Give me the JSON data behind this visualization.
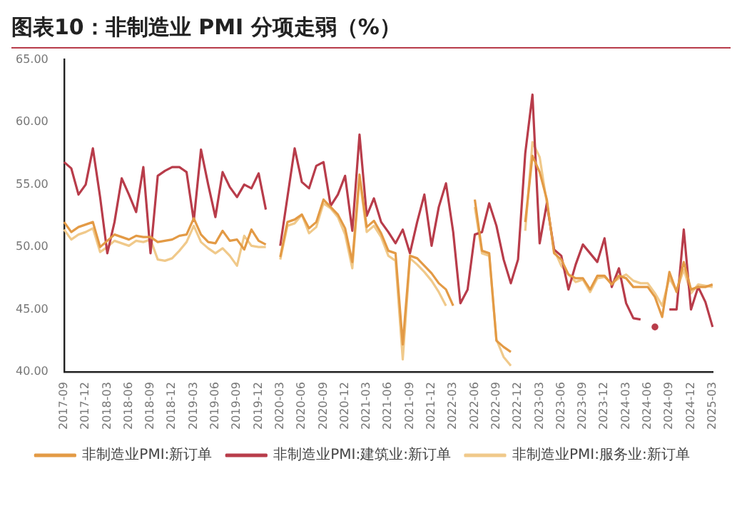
{
  "chart_data": {
    "type": "line",
    "title": "图表10：非制造业 PMI 分项走弱（%）",
    "categories": [
      "2017-09",
      null,
      null,
      "2017-12",
      null,
      null,
      "2018-03",
      null,
      null,
      "2018-06",
      null,
      null,
      "2018-09",
      null,
      null,
      "2018-12",
      null,
      null,
      "2019-03",
      null,
      null,
      "2019-06",
      null,
      null,
      "2019-09",
      null,
      null,
      "2019-12",
      null,
      null,
      "2020-03",
      null,
      null,
      "2020-06",
      null,
      null,
      "2020-09",
      null,
      null,
      "2020-12",
      null,
      null,
      "2021-03",
      null,
      null,
      "2021-06",
      null,
      null,
      "2021-09",
      null,
      null,
      "2021-12",
      null,
      null,
      "2022-03",
      null,
      null,
      "2022-06",
      null,
      null,
      "2022-09",
      null,
      null,
      "2022-12",
      null,
      null,
      "2023-03",
      null,
      null,
      "2023-06",
      null,
      null,
      "2023-09",
      null,
      null,
      "2023-12",
      null,
      null,
      "2024-03",
      null,
      null,
      "2024-06",
      null,
      null,
      "2024-09",
      null,
      null,
      "2024-12",
      null,
      null,
      "2025-03"
    ],
    "series": [
      {
        "name": "非制造业PMI:新订单",
        "color": "#e39a45",
        "values": [
          52,
          51.2,
          51.6,
          51.8,
          52,
          50,
          50.5,
          51,
          50.8,
          50.6,
          50.9,
          50.8,
          50.8,
          50.4,
          50.5,
          50.6,
          50.9,
          51,
          52.3,
          51,
          50.4,
          50.3,
          51.3,
          50.5,
          50.6,
          49.8,
          51.4,
          50.5,
          50.2,
          null,
          49.2,
          52,
          52.2,
          52.6,
          51.5,
          52,
          53.8,
          53.2,
          52.6,
          51.5,
          48.8,
          55.8,
          51.6,
          52.1,
          51.1,
          49.7,
          49.5,
          42.2,
          49.3,
          49.1,
          48.5,
          47.9,
          47.1,
          46.6,
          45.3,
          null,
          null,
          53.8,
          49.7,
          49.5,
          42.5,
          42,
          41.6,
          null,
          52,
          57.3,
          56,
          53.8,
          49.5,
          49,
          47.8,
          47.5,
          47.5,
          46.6,
          47.7,
          47.7,
          47,
          47.7,
          47.5,
          46.8,
          46.8,
          46.8,
          46,
          44.4,
          48,
          46.4,
          48.8,
          46.6,
          46.8,
          46.8,
          47
        ]
      },
      {
        "name": "非制造业PMI:建筑业:新订单",
        "color": "#b83c4a",
        "values": [
          56.8,
          56.3,
          54.2,
          55,
          57.9,
          54,
          49.5,
          52,
          55.5,
          54.2,
          52.8,
          56.4,
          49.5,
          55.7,
          56.1,
          56.4,
          56.4,
          56,
          52.1,
          57.8,
          55,
          52.4,
          56,
          54.8,
          54,
          55,
          54.7,
          55.9,
          53,
          null,
          50.1,
          54,
          57.9,
          55.2,
          54.7,
          56.5,
          56.8,
          53.3,
          54.2,
          55.7,
          51.3,
          59,
          52.5,
          53.9,
          52,
          51.2,
          50.3,
          51.4,
          49.5,
          52,
          54.2,
          50.1,
          53.2,
          55.1,
          51.2,
          45.5,
          46.6,
          51,
          51.2,
          53.5,
          51.7,
          49,
          47.1,
          49,
          57.5,
          62.2,
          50.3,
          53.5,
          49.8,
          49.3,
          46.6,
          48.6,
          50.2,
          49.5,
          48.8,
          50.7,
          46.8,
          48.3,
          45.5,
          44.3,
          44.2,
          null,
          43.6,
          null,
          45,
          45,
          51.4,
          45,
          46.8,
          45.6,
          43.6
        ]
      },
      {
        "name": "非制造业PMI:服务业:新订单",
        "color": "#f0c98a",
        "values": [
          51.4,
          50.6,
          51,
          51.2,
          51.5,
          49.6,
          50,
          50.5,
          50.3,
          50.1,
          50.5,
          50.4,
          50.6,
          49,
          48.9,
          49.1,
          49.7,
          50.4,
          51.7,
          50.4,
          49.9,
          49.5,
          49.9,
          49.3,
          48.5,
          50.9,
          50.1,
          50,
          50,
          null,
          49,
          51.7,
          51.9,
          52.6,
          51.1,
          51.6,
          53.5,
          53.1,
          52.4,
          51,
          48.3,
          55.5,
          51.2,
          51.7,
          50.8,
          49.3,
          48.9,
          41,
          49.1,
          48.6,
          48,
          47.3,
          46.4,
          45.3,
          null,
          null,
          null,
          53.2,
          49.5,
          49.3,
          42.6,
          41.2,
          40.5,
          null,
          51.3,
          58.4,
          57.2,
          53.5,
          49.8,
          48.5,
          47.8,
          47.2,
          47.4,
          46.4,
          47.5,
          47.6,
          47.1,
          47.5,
          47.8,
          47.3,
          47.1,
          47.1,
          46.3,
          45.3,
          47.5,
          46.5,
          48.2,
          46.3,
          47,
          46.9,
          46.8
        ]
      }
    ],
    "ylim": [
      40,
      65
    ],
    "yticks": [
      {
        "value": 40,
        "label": "40.00"
      },
      {
        "value": 45,
        "label": "45.00"
      },
      {
        "value": 50,
        "label": "50.00"
      },
      {
        "value": 55,
        "label": "55.00"
      },
      {
        "value": 60,
        "label": "60.00"
      },
      {
        "value": 65,
        "label": "65.00"
      }
    ],
    "grid": false,
    "legend": "bottom",
    "marker": "none",
    "line_style": "solid"
  }
}
